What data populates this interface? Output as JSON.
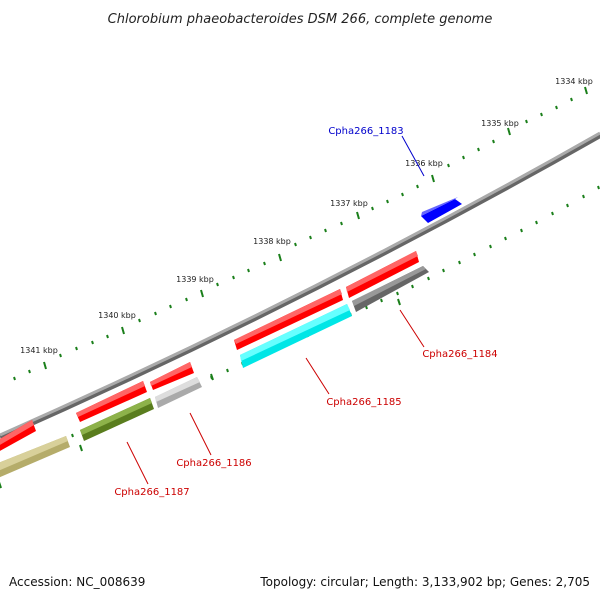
{
  "title": "Chlorobium phaeobacteroides DSM 266, complete genome",
  "footer": {
    "accession": "Accession: NC_008639",
    "topology": "Topology: circular; Length: 3,133,902 bp; Genes: 2,705"
  },
  "kbp_labels": [
    "1334 kbp",
    "1335 kbp",
    "1336 kbp",
    "1337 kbp",
    "1338 kbp",
    "1339 kbp",
    "1340 kbp",
    "1341 kbp"
  ],
  "gene_labels": [
    "Cpha266_1183",
    "Cpha266_1184",
    "Cpha266_1185",
    "Cpha266_1186",
    "Cpha266_1187"
  ],
  "colors": {
    "backbone": "#888888",
    "tick": "#1a7f1a",
    "label_blue": "#0000cc",
    "label_red": "#cc0000",
    "gene_red": "#ff0000",
    "gene_blue": "#0000ff",
    "gene_cyan": "#00ffff",
    "gene_gray": "#666666",
    "gene_lightgray": "#bbbbbb",
    "gene_olive": "#6b8e23",
    "gene_khaki": "#bdb76b"
  }
}
